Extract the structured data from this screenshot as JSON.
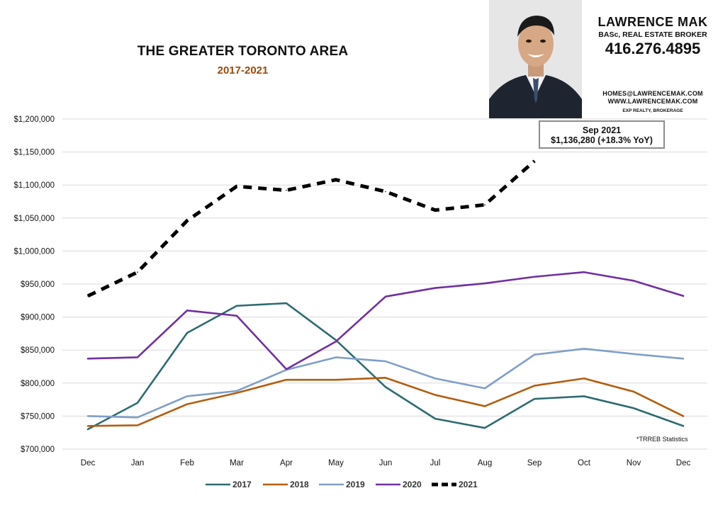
{
  "chart_data": {
    "type": "line",
    "title": "THE GREATER TORONTO AREA",
    "subtitle": "2017-2021",
    "xlabel": "",
    "ylabel": "",
    "categories": [
      "Dec",
      "Jan",
      "Feb",
      "Mar",
      "Apr",
      "May",
      "Jun",
      "Jul",
      "Aug",
      "Sep",
      "Oct",
      "Nov",
      "Dec"
    ],
    "ylim": [
      700000,
      1200000
    ],
    "y_ticks": [
      "$700,000",
      "$750,000",
      "$800,000",
      "$850,000",
      "$900,000",
      "$950,000",
      "$1,000,000",
      "$1,050,000",
      "$1,100,000",
      "$1,150,000",
      "$1,200,000"
    ],
    "grid": true,
    "legend_position": "bottom",
    "series": [
      {
        "name": "2017",
        "color": "#2e6b70",
        "dashed": false,
        "values": [
          730000,
          770000,
          876000,
          917000,
          921000,
          865000,
          794000,
          746000,
          732000,
          776000,
          780000,
          762000,
          735000
        ]
      },
      {
        "name": "2018",
        "color": "#b35d0f",
        "dashed": false,
        "values": [
          735000,
          736000,
          768000,
          785000,
          805000,
          805000,
          808000,
          782000,
          765000,
          796000,
          807000,
          787000,
          750000
        ]
      },
      {
        "name": "2019",
        "color": "#7f9fc7",
        "dashed": false,
        "values": [
          750000,
          748000,
          780000,
          788000,
          820000,
          839000,
          833000,
          807000,
          792000,
          843000,
          852000,
          844000,
          837000
        ]
      },
      {
        "name": "2020",
        "color": "#7030a0",
        "dashed": false,
        "values": [
          837000,
          839000,
          910000,
          902000,
          821000,
          863000,
          931000,
          944000,
          951000,
          961000,
          968000,
          955000,
          932000
        ]
      },
      {
        "name": "2021",
        "color": "#000000",
        "dashed": true,
        "values": [
          932000,
          968000,
          1046000,
          1098000,
          1092000,
          1108000,
          1090000,
          1062000,
          1070000,
          1136280,
          null,
          null,
          null
        ]
      }
    ],
    "annotation": {
      "line1": "Sep 2021",
      "line2": "$1,136,280  (+18.3%  YoY)"
    },
    "note": "*TRREB Statistics"
  },
  "agent": {
    "name": "LAWRENCE MAK",
    "title": "BASc, REAL ESTATE BROKER",
    "phone": "416.276.4895",
    "email": "HOMES@LAWRENCEMAK.COM",
    "website": "WWW.LAWRENCEMAK.COM",
    "brokerage": "EXP REALTY, BROKERAGE"
  }
}
